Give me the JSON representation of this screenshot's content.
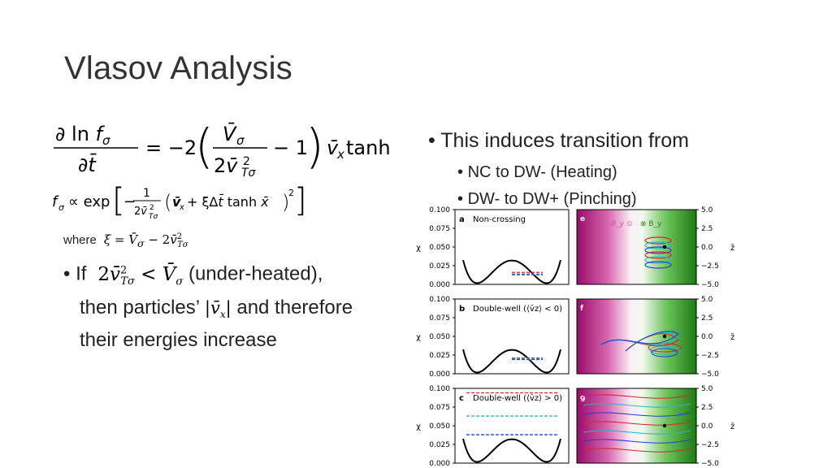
{
  "slide": {
    "title": "Vlasov Analysis",
    "where_label": "where",
    "left_bullet": {
      "if_word": "If",
      "cond_text": "(under-heated),",
      "line2_a": "then particles’",
      "line2_b": "and therefore",
      "line3": "their energies increase"
    },
    "right_bullet": {
      "main": "This induces transition from",
      "sub": [
        "NC to DW- (Heating)",
        "DW- to DW+ (Pinching)"
      ]
    }
  },
  "figure": {
    "panels": [
      {
        "letter": "a",
        "label": "Non-crossing",
        "right_letter": "e"
      },
      {
        "letter": "b",
        "label": "Double-well (⟨v̄z⟩ < 0)",
        "right_letter": "f"
      },
      {
        "letter": "c",
        "label": "Double-well (⟨v̄z⟩ > 0)",
        "right_letter": "g"
      }
    ],
    "left_axis_label": "χ",
    "right_axis_label": "z̄",
    "left_ticks": [
      "0.100",
      "0.075",
      "0.050",
      "0.025",
      "0.000"
    ],
    "right_ticks": [
      "5.0",
      "2.5",
      "0.0",
      "−2.5",
      "−5.0"
    ],
    "field_labels": [
      "B_y ⊙",
      "⊗ B_y"
    ],
    "colors": {
      "magenta": "#a0106e",
      "green": "#2a8a1f",
      "red": "#d62728",
      "blue": "#1f3fd6",
      "cyan": "#2bb3c8"
    }
  }
}
